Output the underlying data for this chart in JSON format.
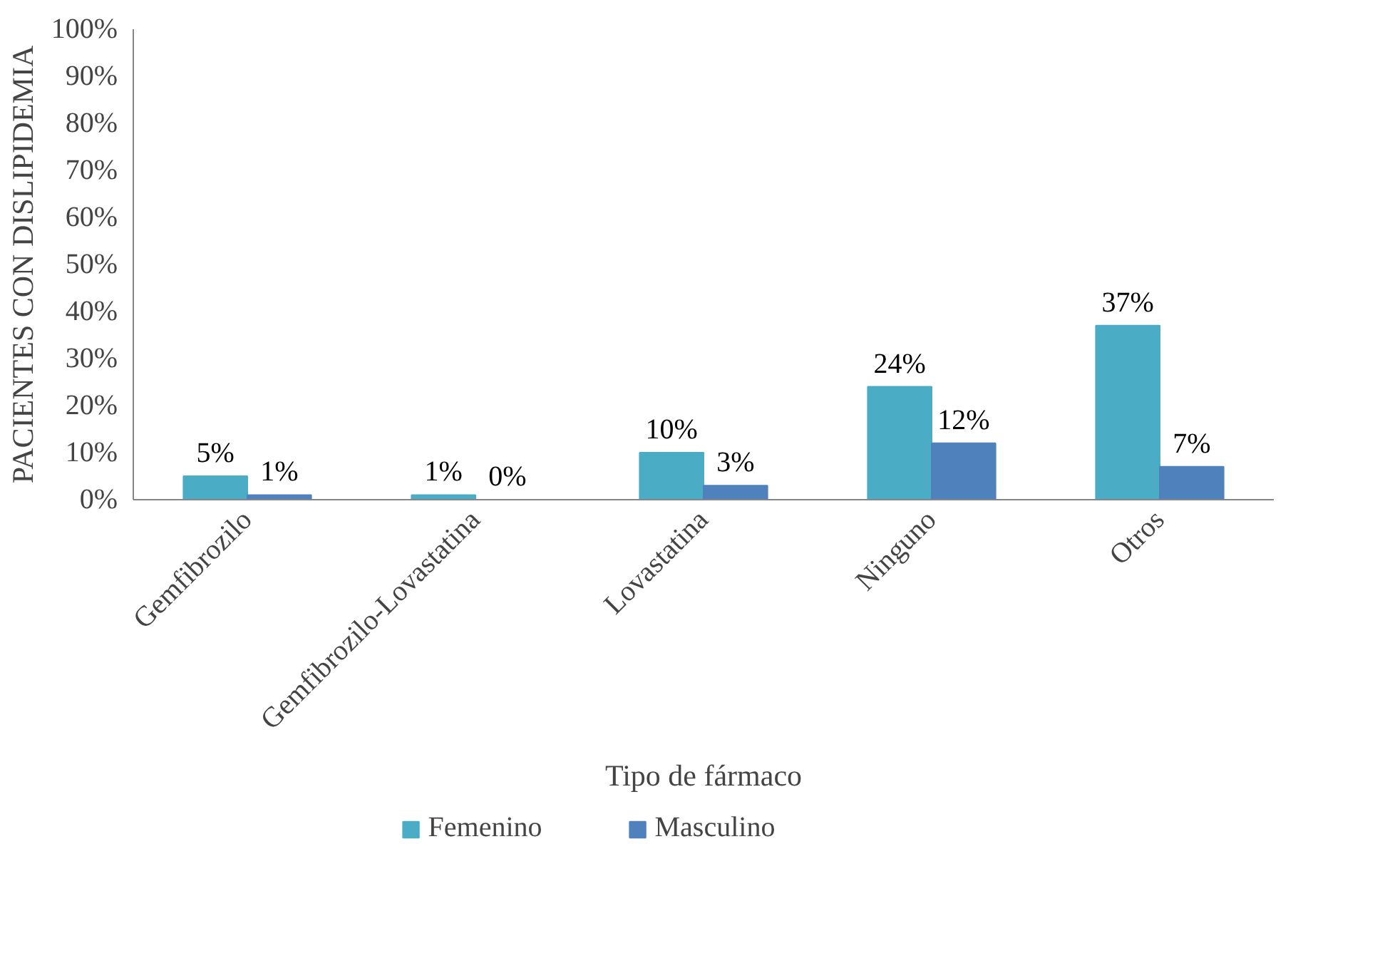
{
  "chart_data": {
    "type": "bar",
    "xlabel": "Tipo de fármaco",
    "ylabel": "PACIENTES CON DISLIPIDEMIA",
    "categories": [
      "Gemfibrozilo",
      "Gemfibrozilo-Lovastatina",
      "Lovastatina",
      "Ninguno",
      "Otros"
    ],
    "series": [
      {
        "name": "Femenino",
        "color": "#4bacc6",
        "values": [
          5,
          1,
          10,
          24,
          37
        ],
        "value_labels": [
          "5%",
          "1%",
          "10%",
          "24%",
          "37%"
        ]
      },
      {
        "name": "Masculino",
        "color": "#4f81bd",
        "values": [
          1,
          0,
          3,
          12,
          7
        ],
        "value_labels": [
          "1%",
          "0%",
          "3%",
          "12%",
          "7%"
        ]
      }
    ],
    "ylim": [
      0,
      100
    ],
    "yticks": [
      {
        "value": 0,
        "label": "0%"
      },
      {
        "value": 10,
        "label": "10%"
      },
      {
        "value": 20,
        "label": "20%"
      },
      {
        "value": 30,
        "label": "30%"
      },
      {
        "value": 40,
        "label": "40%"
      },
      {
        "value": 50,
        "label": "50%"
      },
      {
        "value": 60,
        "label": "60%"
      },
      {
        "value": 70,
        "label": "70%"
      },
      {
        "value": 80,
        "label": "80%"
      },
      {
        "value": 90,
        "label": "90%"
      },
      {
        "value": 100,
        "label": "100%"
      }
    ],
    "grid": false,
    "legend": "bottom"
  }
}
